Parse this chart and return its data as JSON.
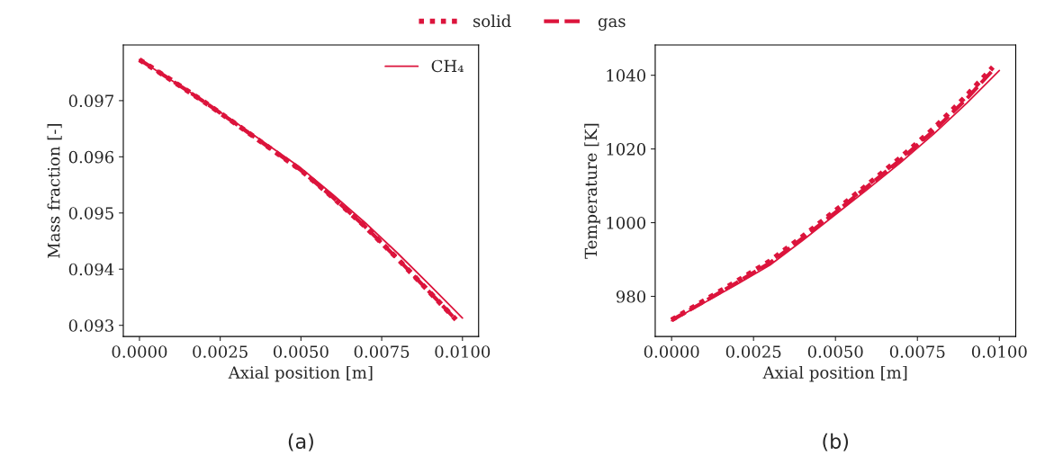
{
  "chart_data": [
    {
      "type": "line",
      "xlabel": "Axial position [m]",
      "ylabel": "Mass fraction [-]",
      "annotations": [
        "(a)"
      ],
      "legend": "top right",
      "grid": false,
      "xlim": [
        -0.0005,
        0.0105
      ],
      "ylim": [
        0.0928,
        0.09799
      ],
      "xticks": [
        {
          "value": 0,
          "label": "0.0000"
        },
        {
          "value": 0.0025,
          "label": "0.0025"
        },
        {
          "value": 0.005,
          "label": "0.0050"
        },
        {
          "value": 0.0075,
          "label": "0.0075"
        },
        {
          "value": 0.01,
          "label": "0.0100"
        }
      ],
      "yticks": [
        0.093,
        0.094,
        0.095,
        0.096,
        0.097
      ],
      "series": [
        {
          "line_style": "dotted",
          "color": "#dc143c",
          "x": [
            0,
            0.001,
            0.002,
            0.003,
            0.004,
            0.005,
            0.006,
            0.007,
            0.008,
            0.009,
            0.0098
          ],
          "values": [
            0.09773,
            0.09736,
            0.09698,
            0.09658,
            0.09617,
            0.09576,
            0.09527,
            0.09475,
            0.09418,
            0.09358,
            0.0931
          ]
        },
        {
          "line_style": "dashed",
          "color": "#dc143c",
          "x": [
            0,
            0.001,
            0.002,
            0.003,
            0.004,
            0.005,
            0.006,
            0.007,
            0.008,
            0.009,
            0.0098
          ],
          "values": [
            0.09773,
            0.09736,
            0.09698,
            0.09658,
            0.09617,
            0.09576,
            0.09527,
            0.09475,
            0.09418,
            0.09358,
            0.0931
          ]
        },
        {
          "name": "CH₄",
          "line_style": "solid",
          "color": "#dc143c",
          "x": [
            0,
            0.001,
            0.002,
            0.003,
            0.004,
            0.005,
            0.006,
            0.007,
            0.008,
            0.009,
            0.01
          ],
          "values": [
            0.09773,
            0.09736,
            0.09699,
            0.0966,
            0.0962,
            0.0958,
            0.09532,
            0.09482,
            0.09428,
            0.09371,
            0.09313
          ]
        }
      ]
    },
    {
      "type": "line",
      "xlabel": "Axial position [m]",
      "ylabel": "Temperature [K]",
      "annotations": [
        "(b)"
      ],
      "legend": "top",
      "grid": false,
      "xlim": [
        -0.0005,
        0.0105
      ],
      "ylim": [
        969.1,
        1048.2
      ],
      "xticks": [
        {
          "value": 0,
          "label": "0.0000"
        },
        {
          "value": 0.0025,
          "label": "0.0025"
        },
        {
          "value": 0.005,
          "label": "0.0050"
        },
        {
          "value": 0.0075,
          "label": "0.0075"
        },
        {
          "value": 0.01,
          "label": "0.0100"
        }
      ],
      "yticks": [
        980,
        1000,
        1020,
        1040
      ],
      "series": [
        {
          "name": "solid",
          "line_style": "dotted",
          "color": "#dc143c",
          "x": [
            0,
            0.001,
            0.002,
            0.003,
            0.004,
            0.005,
            0.006,
            0.007,
            0.008,
            0.009,
            0.0098
          ],
          "values": [
            973.6,
            978.9,
            984.2,
            989.6,
            996.3,
            1003.3,
            1010.5,
            1017.8,
            1025.6,
            1034.5,
            1042.2
          ]
        },
        {
          "name": "gas",
          "line_style": "dashed",
          "color": "#dc143c",
          "x": [
            0,
            0.001,
            0.002,
            0.003,
            0.004,
            0.005,
            0.006,
            0.007,
            0.008,
            0.009,
            0.0098
          ],
          "values": [
            973.5,
            978.6,
            983.8,
            989.1,
            995.8,
            1002.8,
            1010.0,
            1017.2,
            1025.0,
            1033.6,
            1041.4
          ]
        },
        {
          "line_style": "solid",
          "color": "#dc143c",
          "x": [
            0,
            0.001,
            0.002,
            0.003,
            0.004,
            0.005,
            0.006,
            0.007,
            0.008,
            0.009,
            0.01
          ],
          "values": [
            973.4,
            978.3,
            983.3,
            988.5,
            995.2,
            1002.2,
            1009.2,
            1016.4,
            1024.1,
            1032.4,
            1041.3
          ]
        }
      ]
    }
  ]
}
